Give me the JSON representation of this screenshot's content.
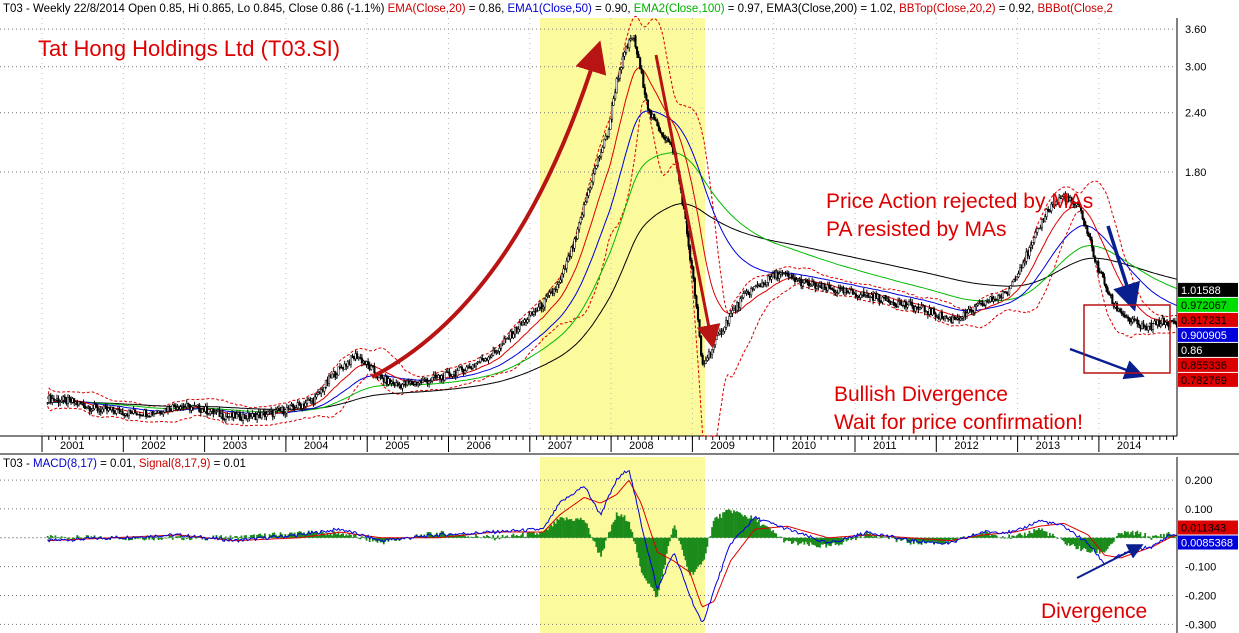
{
  "header_segments": [
    {
      "text": "T03 - Weekly 22/8/2014 Open 0.85, Hi 0.865, Lo 0.845, Close 0.86 (-1.1%) ",
      "color": "#000000"
    },
    {
      "text": "EMA(Close,20)",
      "color": "#cc0000"
    },
    {
      "text": " = 0.86, ",
      "color": "#000000"
    },
    {
      "text": "EMA1(Close,50)",
      "color": "#0000cc"
    },
    {
      "text": " = 0.90, ",
      "color": "#000000"
    },
    {
      "text": "EMA2(Close,100)",
      "color": "#00b000"
    },
    {
      "text": " = 0.97, EMA3(Close,200) = 1.02, ",
      "color": "#000000"
    },
    {
      "text": "BBTop(Close,20,2)",
      "color": "#cc0000"
    },
    {
      "text": " = 0.92, ",
      "color": "#000000"
    },
    {
      "text": "BBBot(Close,2",
      "color": "#cc0000"
    }
  ],
  "macd_header_segments": [
    {
      "text": "T03 - ",
      "color": "#000000"
    },
    {
      "text": "MACD(8,17)",
      "color": "#0000cc"
    },
    {
      "text": " = 0.01, ",
      "color": "#000000"
    },
    {
      "text": "Signal(8,17,9)",
      "color": "#cc0000"
    },
    {
      "text": " = 0.01",
      "color": "#000000"
    }
  ],
  "annotations": {
    "title": "Tat Hong Holdings Ltd (T03.SI)",
    "price_action_1": "Price Action rejected by MAs",
    "price_action_2": "PA resisted by MAs",
    "bullish_1": "Bullish Divergence",
    "bullish_2": "Wait for price confirmation!",
    "divergence": "Divergence"
  },
  "colors": {
    "annotation_red": "#dd0000",
    "arrow_red": "#b81414",
    "arrow_blue": "#0a1f8f",
    "highlight_yellow": "#fbfa9c",
    "ema20": "#dd0000",
    "ema50": "#0000dd",
    "ema100": "#00bb00",
    "ema200": "#000000",
    "bollinger": "#dd0000",
    "macd_line": "#0000dd",
    "signal_line": "#dd0000",
    "histogram": "#1a8a1a"
  },
  "chart_data": [
    {
      "type": "line",
      "title": "Tat Hong Holdings Ltd (T03.SI)",
      "subtitle": "T03 - Weekly 22/8/2014 Open 0.85, Hi 0.865, Lo 0.845, Close 0.86 (-1.1%)",
      "x_tick_labels": [
        "2001",
        "2002",
        "2003",
        "2004",
        "2005",
        "2006",
        "2007",
        "2008",
        "2009",
        "2010",
        "2011",
        "2012",
        "2013",
        "2014"
      ],
      "y_tick_labels": [
        "3.60",
        "3.00",
        "2.40",
        "1.80"
      ],
      "y_scale": "log",
      "ylim": [
        0.5,
        3.8
      ],
      "grid": true,
      "highlight_period": [
        "2007",
        "2008"
      ],
      "series": [
        {
          "name": "Close",
          "x": [
            2000.7,
            2001.0,
            2001.3,
            2001.7,
            2002.0,
            2002.3,
            2002.6,
            2002.9,
            2003.2,
            2003.5,
            2003.8,
            2004.0,
            2004.2,
            2004.5,
            2004.8,
            2005.0,
            2005.3,
            2005.6,
            2005.9,
            2006.2,
            2006.5,
            2006.8,
            2007.0,
            2007.2,
            2007.4,
            2007.6,
            2007.7,
            2007.8,
            2007.9,
            2008.0,
            2008.1,
            2008.2,
            2008.4,
            2008.6,
            2008.75,
            2008.9,
            2009.1,
            2009.3,
            2009.5,
            2009.7,
            2010.0,
            2010.3,
            2010.6,
            2010.9,
            2011.2,
            2011.5,
            2011.8,
            2012.0,
            2012.2,
            2012.5,
            2012.8,
            2013.0,
            2013.2,
            2013.4,
            2013.6,
            2013.8,
            2014.0,
            2014.2,
            2014.4,
            2014.6
          ],
          "y": [
            0.6,
            0.59,
            0.57,
            0.56,
            0.56,
            0.58,
            0.57,
            0.55,
            0.55,
            0.56,
            0.58,
            0.6,
            0.67,
            0.74,
            0.66,
            0.64,
            0.65,
            0.67,
            0.7,
            0.75,
            0.85,
            0.95,
            1.05,
            1.3,
            1.75,
            2.2,
            2.8,
            3.2,
            3.5,
            2.9,
            2.4,
            2.25,
            2.0,
            1.2,
            0.7,
            0.78,
            0.9,
            1.0,
            1.05,
            1.1,
            1.05,
            1.02,
            1.0,
            0.98,
            0.95,
            0.92,
            0.88,
            0.9,
            0.95,
            1.0,
            1.25,
            1.5,
            1.6,
            1.5,
            1.15,
            0.95,
            0.88,
            0.84,
            0.87,
            0.86
          ]
        },
        {
          "name": "EMA(Close,20)",
          "values_at_end": 0.86
        },
        {
          "name": "EMA1(Close,50)",
          "values_at_end": 0.9
        },
        {
          "name": "EMA2(Close,100)",
          "values_at_end": 0.97
        },
        {
          "name": "EMA3(Close,200)",
          "values_at_end": 1.02
        },
        {
          "name": "BBTop(Close,20,2)",
          "values_at_end": 0.92
        }
      ],
      "last_value_labels": [
        {
          "text": "1.01588",
          "bg": "#000000",
          "fg": "#ffffff"
        },
        {
          "text": "0.972067",
          "bg": "#00dd00",
          "fg": "#000000"
        },
        {
          "text": "0.917231",
          "bg": "#dd0000",
          "fg": "#000000"
        },
        {
          "text": "0.900905",
          "bg": "#0000dd",
          "fg": "#ffffff"
        },
        {
          "text": "0.86",
          "bg": "#000000",
          "fg": "#ffffff"
        },
        {
          "text": "0.855336",
          "bg": "#dd0000",
          "fg": "#000000"
        },
        {
          "text": "0.782769",
          "bg": "#dd0000",
          "fg": "#000000"
        }
      ]
    },
    {
      "type": "line",
      "title": "T03 - MACD(8,17) = 0.01, Signal(8,17,9) = 0.01",
      "y_tick_labels": [
        "0.200",
        "0.100",
        "-0.100",
        "-0.200",
        "-0.300"
      ],
      "ylim": [
        -0.33,
        0.28
      ],
      "grid": true,
      "series": [
        {
          "name": "MACD(8,17)",
          "x": [
            2000.7,
            2001.5,
            2002.3,
            2003.0,
            2003.8,
            2004.3,
            2004.8,
            2005.5,
            2006.2,
            2006.8,
            2007.0,
            2007.3,
            2007.5,
            2007.7,
            2007.85,
            2008.0,
            2008.2,
            2008.4,
            2008.6,
            2008.75,
            2008.9,
            2009.1,
            2009.4,
            2009.8,
            2010.3,
            2010.8,
            2011.3,
            2011.8,
            2012.2,
            2012.6,
            2012.9,
            2013.2,
            2013.5,
            2013.7,
            2013.9,
            2014.1,
            2014.3,
            2014.5,
            2014.6
          ],
          "y": [
            -0.01,
            0.0,
            0.01,
            -0.01,
            0.01,
            0.03,
            -0.01,
            0.01,
            0.02,
            0.03,
            0.12,
            0.18,
            0.08,
            0.2,
            0.24,
            0.05,
            -0.18,
            -0.05,
            -0.2,
            -0.3,
            -0.18,
            -0.02,
            0.07,
            0.03,
            -0.02,
            0.02,
            -0.01,
            -0.02,
            0.02,
            0.02,
            0.06,
            0.04,
            -0.02,
            -0.09,
            -0.06,
            -0.04,
            -0.03,
            0.01,
            0.01
          ]
        },
        {
          "name": "Signal(8,17,9)",
          "x": [
            2000.7,
            2001.5,
            2002.3,
            2003.0,
            2003.8,
            2004.3,
            2004.8,
            2005.5,
            2006.2,
            2006.8,
            2007.0,
            2007.3,
            2007.5,
            2007.7,
            2007.85,
            2008.0,
            2008.2,
            2008.4,
            2008.6,
            2008.75,
            2008.9,
            2009.1,
            2009.4,
            2009.8,
            2010.3,
            2010.8,
            2011.3,
            2011.8,
            2012.2,
            2012.6,
            2012.9,
            2013.2,
            2013.5,
            2013.7,
            2013.9,
            2014.1,
            2014.3,
            2014.5,
            2014.6
          ],
          "y": [
            -0.01,
            0.0,
            0.01,
            -0.01,
            0.0,
            0.02,
            0.0,
            0.0,
            0.02,
            0.02,
            0.08,
            0.14,
            0.12,
            0.15,
            0.2,
            0.12,
            -0.05,
            -0.08,
            -0.12,
            -0.24,
            -0.22,
            -0.08,
            0.03,
            0.04,
            0.0,
            0.01,
            0.0,
            -0.01,
            0.01,
            0.02,
            0.04,
            0.05,
            0.01,
            -0.06,
            -0.07,
            -0.05,
            -0.03,
            0.0,
            0.01
          ]
        }
      ],
      "last_value_labels": [
        {
          "text": "0.011343",
          "bg": "#dd0000",
          "fg": "#000000"
        },
        {
          "text": "0.0085368",
          "bg": "#0000dd",
          "fg": "#ffffff"
        }
      ]
    }
  ]
}
